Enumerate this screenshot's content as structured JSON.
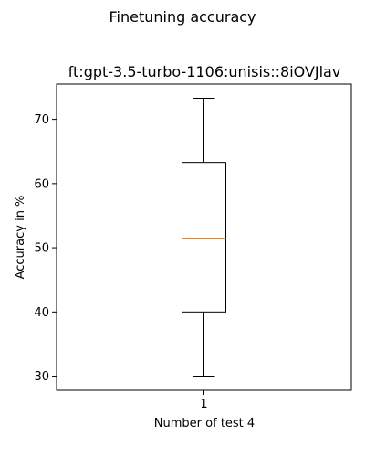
{
  "chart_data": {
    "type": "box",
    "suptitle": "Finetuning accuracy",
    "title": "ft:gpt-3.5-turbo-1106:unisis::8iOVJlav",
    "xlabel": "Number of test 4",
    "ylabel": "Accuracy in %",
    "categories": [
      "1"
    ],
    "boxes": [
      {
        "category": "1",
        "whisker_low": 30.0,
        "q1": 40.0,
        "median": 51.5,
        "q3": 63.3,
        "whisker_high": 73.3
      }
    ],
    "yticks": [
      30,
      40,
      50,
      60,
      70
    ],
    "ylim": [
      27.8,
      75.5
    ],
    "grid": false,
    "median_color": "#ff7f0e",
    "line_color": "#000000"
  }
}
